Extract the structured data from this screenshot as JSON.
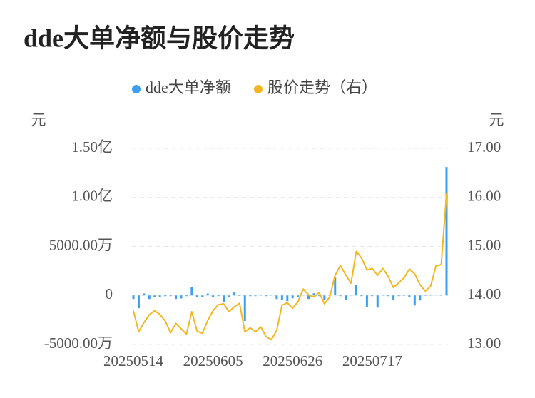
{
  "chart_data": {
    "type": "bar-line",
    "title": "dde大单净额与股价走势",
    "y_unit": "元",
    "y2_unit": "元",
    "categories": [
      "20250514",
      null,
      null,
      null,
      null,
      null,
      null,
      null,
      null,
      null,
      null,
      null,
      null,
      null,
      null,
      "20250605",
      null,
      null,
      null,
      null,
      null,
      null,
      null,
      null,
      null,
      null,
      null,
      null,
      null,
      null,
      "20250626",
      null,
      null,
      null,
      null,
      null,
      null,
      null,
      null,
      null,
      null,
      null,
      null,
      null,
      null,
      "20250717",
      null,
      null,
      null,
      null,
      null,
      null,
      null,
      null,
      null,
      null,
      null,
      null,
      null,
      null
    ],
    "series": [
      {
        "name": "dde大单净额",
        "color": "#3ba0f0",
        "type": "bar",
        "values": [
          -3600000,
          -13000000,
          2000000,
          -3600000,
          -2000000,
          -1500000,
          -700000,
          -700000,
          -3600000,
          -3000000,
          -700000,
          8700000,
          -1500000,
          -1500000,
          2000000,
          -2000000,
          -700000,
          -6500000,
          -2000000,
          3000000,
          -500000,
          -26000000,
          -700000,
          -700000,
          500000,
          -700000,
          300000,
          -3600000,
          -4400000,
          -5800000,
          -2900000,
          -1500000,
          700000,
          -3600000,
          2200000,
          -700000,
          -4400000,
          300000,
          18200000,
          -700000,
          -4400000,
          300000,
          10900000,
          -700000,
          -11600000,
          -700000,
          -12400000,
          300000,
          -700000,
          -4400000,
          -700000,
          -300000,
          -1500000,
          -10200000,
          -5100000,
          300000,
          700000,
          700000,
          300000,
          131000000
        ]
      },
      {
        "name": "股价走势（右）",
        "color": "#f5b622",
        "type": "line",
        "axis": "y2",
        "values": [
          13.69,
          13.26,
          13.45,
          13.61,
          13.69,
          13.61,
          13.48,
          13.24,
          13.43,
          13.32,
          13.21,
          13.67,
          13.27,
          13.23,
          13.49,
          13.69,
          13.81,
          13.83,
          13.67,
          13.77,
          13.84,
          13.26,
          13.34,
          13.26,
          13.36,
          13.16,
          13.1,
          13.29,
          13.8,
          13.85,
          13.74,
          13.87,
          14.13,
          14.01,
          13.97,
          14.06,
          13.83,
          13.97,
          14.41,
          14.61,
          14.42,
          14.25,
          14.9,
          14.76,
          14.52,
          14.55,
          14.41,
          14.55,
          14.39,
          14.16,
          14.26,
          14.36,
          14.54,
          14.44,
          14.22,
          14.09,
          14.19,
          14.6,
          14.63,
          16.08
        ]
      }
    ],
    "ylim": [
      -50000000,
      150000000
    ],
    "yticks": [
      {
        "value": -50000000,
        "label": "-5000.00万"
      },
      0,
      {
        "value": 50000000,
        "label": "5000.00万"
      },
      {
        "value": 100000000,
        "label": "1.00亿"
      },
      {
        "value": 150000000,
        "label": "1.50亿"
      }
    ],
    "y2lim": [
      13,
      17
    ],
    "y2ticks": [
      {
        "value": 13,
        "label": "13.00"
      },
      {
        "value": 14,
        "label": "14.00"
      },
      {
        "value": 15,
        "label": "15.00"
      },
      {
        "value": 16,
        "label": "16.00"
      },
      {
        "value": 17,
        "label": "17.00"
      }
    ],
    "grid": true
  }
}
